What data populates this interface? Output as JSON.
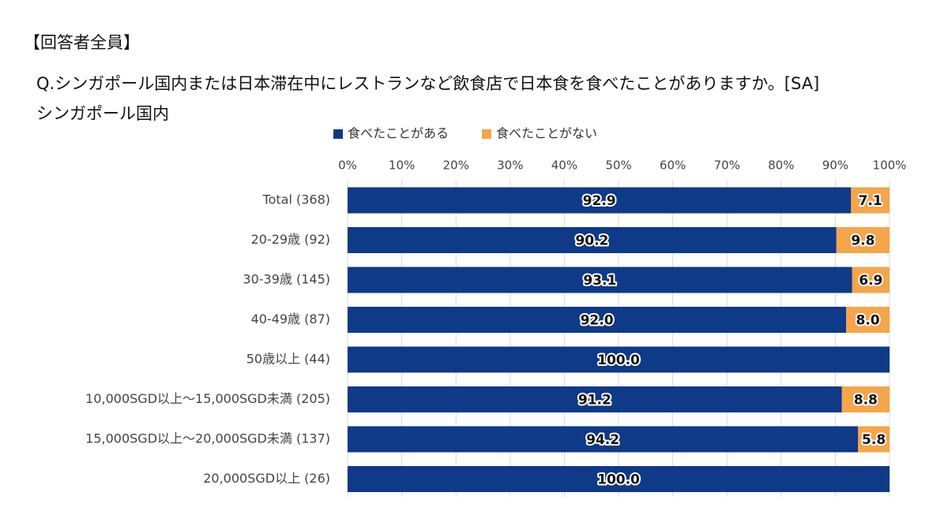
{
  "header": {
    "respondents": "【回答者全員】",
    "question": "Q.シンガポール国内または日本滞在中にレストランなど飲食店で日本食を食べたことがありますか。[SA]",
    "subtitle": "シンガポール国内"
  },
  "chart_data": {
    "type": "bar",
    "orientation": "horizontal",
    "stacked": "percent",
    "title": "",
    "xlabel": "",
    "ylabel": "",
    "xlim": [
      0,
      100
    ],
    "x_ticks": [
      "0%",
      "10%",
      "20%",
      "30%",
      "40%",
      "50%",
      "60%",
      "70%",
      "80%",
      "90%",
      "100%"
    ],
    "grid": "vertical",
    "legend_position": "top",
    "categories": [
      "Total (368)",
      "20-29歳 (92)",
      "30-39歳 (145)",
      "40-49歳 (87)",
      "50歳以上 (44)",
      "10,000SGD以上～15,000SGD未満 (205)",
      "15,000SGD以上～20,000SGD未満 (137)",
      "20,000SGD以上 (26)"
    ],
    "series": [
      {
        "name": "食べたことがある",
        "color": "#0E3A87",
        "values": [
          92.9,
          90.2,
          93.1,
          92.0,
          100.0,
          91.2,
          94.2,
          100.0
        ],
        "labels": [
          "92.9",
          "90.2",
          "93.1",
          "92.0",
          "100.0",
          "91.2",
          "94.2",
          "100.0"
        ]
      },
      {
        "name": "食べたことがない",
        "color": "#F5A54A",
        "values": [
          7.1,
          9.8,
          6.9,
          8.0,
          0.0,
          8.8,
          5.8,
          0.0
        ],
        "labels": [
          "7.1",
          "9.8",
          "6.9",
          "8.0",
          "",
          "8.8",
          "5.8",
          ""
        ]
      }
    ]
  }
}
